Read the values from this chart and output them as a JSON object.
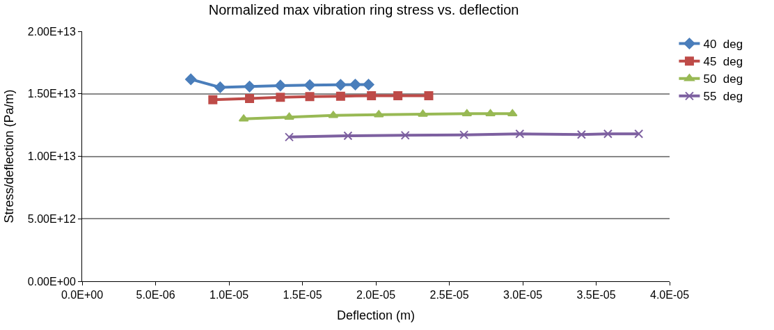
{
  "chart_data": {
    "type": "line",
    "title": "Normalized max vibration ring stress vs. deflection",
    "xlabel": "Deflection (m)",
    "ylabel": "Stress/deflection (Pa/m)",
    "xlim": [
      0,
      4e-05
    ],
    "ylim": [
      0,
      20000000000000.0
    ],
    "xticks": [
      {
        "value": 0,
        "label": "0.0E+00"
      },
      {
        "value": 5e-06,
        "label": "5.0E-06"
      },
      {
        "value": 1e-05,
        "label": "1.0E-05"
      },
      {
        "value": 1.5e-05,
        "label": "1.5E-05"
      },
      {
        "value": 2e-05,
        "label": "2.0E-05"
      },
      {
        "value": 2.5e-05,
        "label": "2.5E-05"
      },
      {
        "value": 3e-05,
        "label": "3.0E-05"
      },
      {
        "value": 3.5e-05,
        "label": "3.5E-05"
      },
      {
        "value": 4e-05,
        "label": "4.0E-05"
      }
    ],
    "yticks": [
      {
        "value": 0,
        "label": "0.00E+00"
      },
      {
        "value": 5000000000000.0,
        "label": "5.00E+12"
      },
      {
        "value": 10000000000000.0,
        "label": "1.00E+13"
      },
      {
        "value": 15000000000000.0,
        "label": "1.50E+13"
      },
      {
        "value": 20000000000000.0,
        "label": "2.00E+13"
      }
    ],
    "grid": "y",
    "legend": "top right",
    "series": [
      {
        "name": "40  deg",
        "color": "#4a7ebb",
        "marker": "diamond",
        "x": [
          7.4e-06,
          9.4e-06,
          1.14e-05,
          1.35e-05,
          1.55e-05,
          1.76e-05,
          1.86e-05,
          1.95e-05
        ],
        "values": [
          16160000000000.0,
          15520000000000.0,
          15580000000000.0,
          15660000000000.0,
          15700000000000.0,
          15720000000000.0,
          15740000000000.0,
          15740000000000.0
        ]
      },
      {
        "name": "45  deg",
        "color": "#be4b48",
        "marker": "square",
        "x": [
          8.9e-06,
          1.14e-05,
          1.35e-05,
          1.55e-05,
          1.76e-05,
          1.97e-05,
          2.15e-05,
          2.36e-05
        ],
        "values": [
          14520000000000.0,
          14620000000000.0,
          14720000000000.0,
          14780000000000.0,
          14810000000000.0,
          14850000000000.0,
          14850000000000.0,
          14850000000000.0
        ]
      },
      {
        "name": "50  deg",
        "color": "#98b954",
        "marker": "triangle",
        "x": [
          1.1e-05,
          1.41e-05,
          1.71e-05,
          2.02e-05,
          2.32e-05,
          2.62e-05,
          2.78e-05,
          2.93e-05
        ],
        "values": [
          12990000000000.0,
          13140000000000.0,
          13270000000000.0,
          13330000000000.0,
          13370000000000.0,
          13410000000000.0,
          13410000000000.0,
          13410000000000.0
        ]
      },
      {
        "name": "55  deg",
        "color": "#7d60a0",
        "marker": "cross",
        "x": [
          1.41e-05,
          1.81e-05,
          2.2e-05,
          2.6e-05,
          2.98e-05,
          3.4e-05,
          3.58e-05,
          3.79e-05
        ],
        "values": [
          11540000000000.0,
          11640000000000.0,
          11680000000000.0,
          11720000000000.0,
          11800000000000.0,
          11740000000000.0,
          11800000000000.0,
          11800000000000.0
        ]
      }
    ]
  }
}
